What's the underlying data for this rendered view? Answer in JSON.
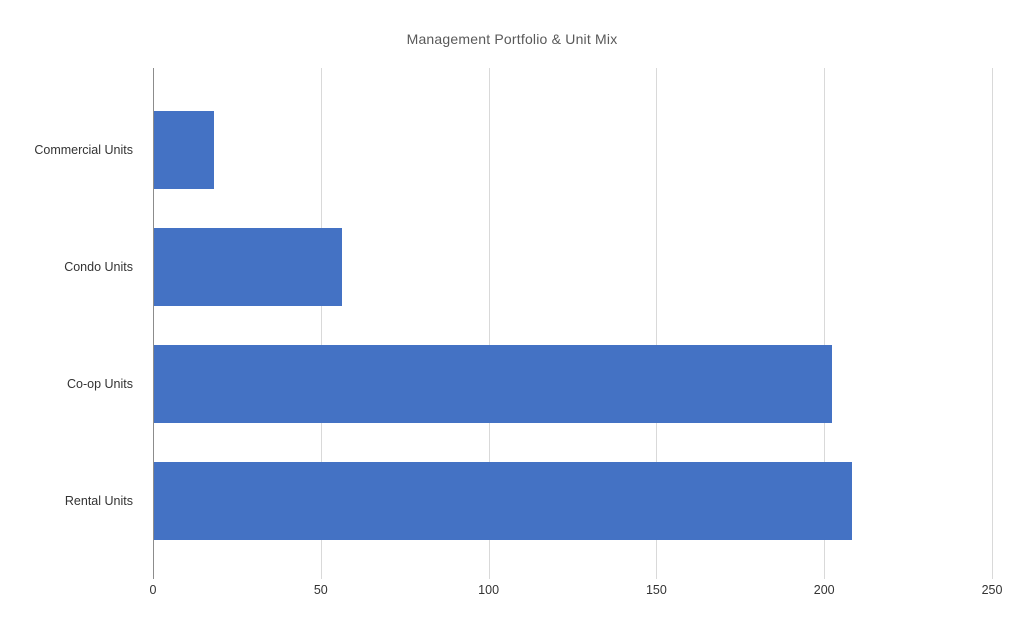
{
  "chart_data": {
    "type": "bar",
    "orientation": "horizontal",
    "title": "Management Portfolio & Unit Mix",
    "categories": [
      "Commercial Units",
      "Condo Units",
      "Co-op Units",
      "Rental Units"
    ],
    "values": [
      18,
      56,
      202,
      208
    ],
    "xlabel": "",
    "ylabel": "",
    "xlim": [
      0,
      250
    ],
    "xticks": [
      0,
      50,
      100,
      150,
      200,
      250
    ],
    "grid": true,
    "legend": false,
    "colors": {
      "bar": "#4472C4",
      "gridline": "#D9D9D9",
      "axis_line": "#8C8C8C",
      "title": "#595959",
      "labels": "#333333",
      "background": "#FFFFFF"
    }
  }
}
